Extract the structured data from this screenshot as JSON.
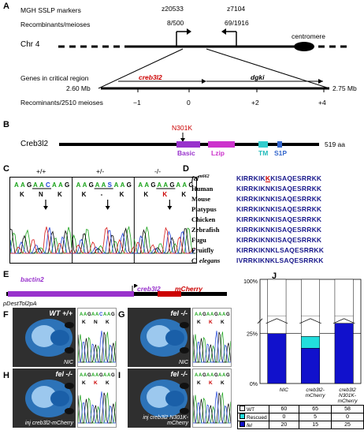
{
  "panels": {
    "A": {
      "label": "A",
      "markers_title": "MGH SSLP markers",
      "recomb_label": "Recombinants/meioses",
      "marker1": "z20533",
      "marker1_ratio": "8/500",
      "marker2": "z7104",
      "marker2_ratio": "69/1916",
      "chr": "Chr 4",
      "centromere": "centromere",
      "genes_label": "Genes in critical region",
      "gene1": "creb3l2",
      "gene2": "dgki",
      "left_mb": "2.60 Mb",
      "right_mb": "2.75 Mb",
      "bottom_label": "Recominants/2510 meioses",
      "ticks": [
        "−1",
        "0",
        "+2",
        "+4"
      ]
    },
    "B": {
      "label": "B",
      "protein": "Creb3l2",
      "mutation": "N301K",
      "length": "519 aa",
      "domains": [
        "Basic",
        "Lzip",
        "TM",
        "S1P"
      ],
      "colors": {
        "basic": "#9933cc",
        "lzip": "#cc33cc",
        "tm": "#33cccc",
        "s1p": "#3366cc"
      }
    },
    "C": {
      "label": "C",
      "genotypes": [
        "+/+",
        "+/-",
        "-/-"
      ],
      "seqs": [
        {
          "bases": [
            "A",
            "A",
            "G",
            "A",
            "A",
            "C",
            "A",
            "A",
            "G"
          ],
          "aa": [
            "K",
            "N",
            "K"
          ]
        },
        {
          "bases": [
            "A",
            "A",
            "G",
            "A",
            "A",
            "S",
            "A",
            "A",
            "G"
          ],
          "aa": [
            "K",
            "-",
            "K"
          ]
        },
        {
          "bases": [
            "A",
            "A",
            "G",
            "A",
            "A",
            "G",
            "A",
            "A",
            "G"
          ],
          "aa": [
            "K",
            "K",
            "K"
          ]
        }
      ]
    },
    "D": {
      "label": "D",
      "species": [
        "fel",
        "Human",
        "Mouse",
        "Platypus",
        "Chicken",
        "Zebrafish",
        "Fugu",
        "Fruitfly",
        "C. elegans"
      ],
      "fel_sup": "m662",
      "sequences": [
        "KIRRKIKKKISAQESRRKK",
        "KIRRKIKNKISAQESRRKK",
        "KIRRKIKNKISAQESRRKK",
        "KIRRKIKNKISAQESRRKK",
        "KIRRKIKNKISAQESRRKK",
        "KIRRKIKNKISAQESRRKK",
        "KIRRKIKNKISAQESRRKK",
        "KIRRKIKNKLSAQESRRKK",
        "IVRRKIKNKLSAQESRRKK"
      ]
    },
    "E": {
      "label": "E",
      "promoter": "bactin2",
      "gene": "creb3l2",
      "tag": "mCherry",
      "vector": "pDestTol2pA"
    },
    "F": {
      "label": "F",
      "geno": "WT +/+",
      "tag": "NIC",
      "aa": [
        "K",
        "N",
        "K"
      ],
      "bases": "AAGAACAAG"
    },
    "G": {
      "label": "G",
      "geno": "fel -/-",
      "tag": "NIC",
      "aa": [
        "K",
        "K",
        "K"
      ],
      "bases": "AAGAAGAAG"
    },
    "H": {
      "label": "H",
      "geno": "fel -/-",
      "tag": "inj creb3l2-mCherry",
      "aa": [
        "K",
        "K",
        "K"
      ],
      "bases": "AAGAAGAAG"
    },
    "I": {
      "label": "I",
      "geno": "fel -/-",
      "tag": "inj creb3l2 N301K-mCherry",
      "aa": [
        "K",
        "K",
        "K"
      ],
      "bases": "AAGAAGAAG"
    }
  },
  "chart_data": {
    "type": "bar",
    "title": "J",
    "stacked": true,
    "categories": [
      "NIC",
      "creb3l2-mCherry",
      "creb3l2 N301K-mCherry"
    ],
    "series": [
      {
        "name": "fel",
        "values": [
          20,
          15,
          25
        ],
        "color": "#1111cc"
      },
      {
        "name": "Rescued",
        "values": [
          0,
          5,
          0
        ],
        "color": "#22dddd"
      },
      {
        "name": "WT",
        "values": [
          60,
          65,
          58
        ],
        "color": "#ffffff"
      }
    ],
    "ytick_labels": [
      "0%",
      "25%",
      "100%"
    ],
    "axis_break": true,
    "table": {
      "rows": [
        {
          "label": "WT",
          "values": [
            "60",
            "65",
            "58"
          ]
        },
        {
          "label": "Rescued",
          "values": [
            "0",
            "5",
            "0"
          ]
        },
        {
          "label": "fel",
          "values": [
            "20",
            "15",
            "25"
          ]
        }
      ]
    }
  }
}
